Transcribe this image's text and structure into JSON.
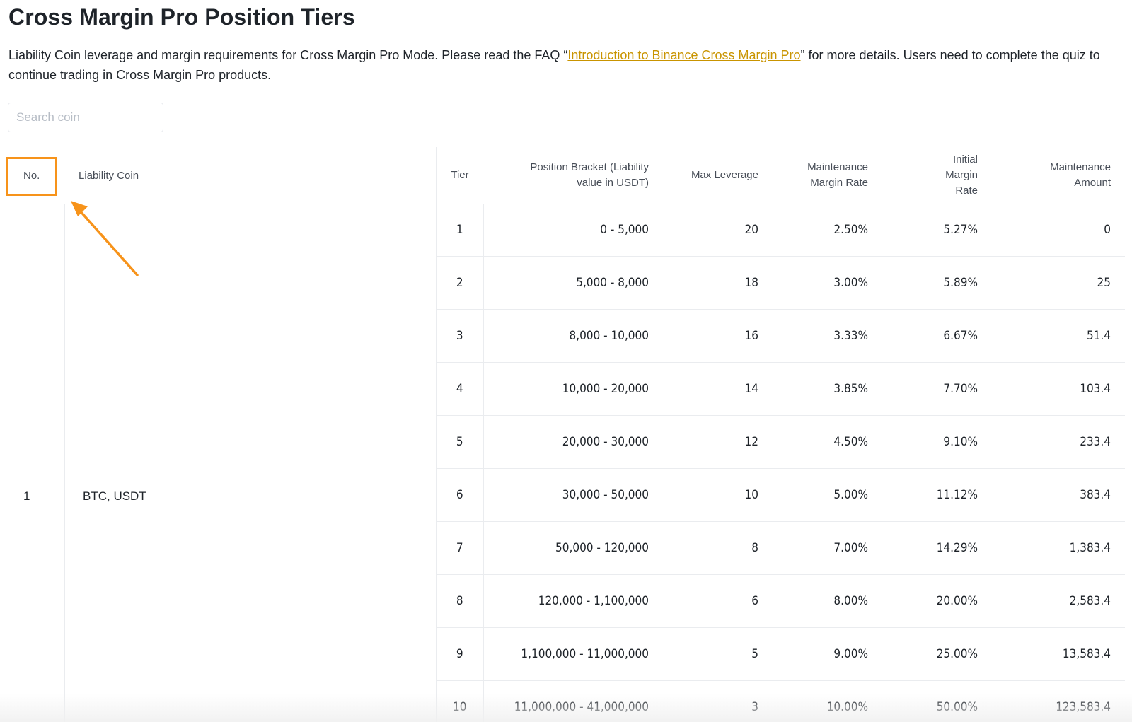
{
  "page": {
    "title": "Cross Margin Pro Position Tiers",
    "intro_before": "Liability Coin leverage and margin requirements for Cross Margin Pro Mode. Please read the FAQ “",
    "intro_link": "Introduction to Binance Cross Margin Pro",
    "intro_after": "” for more details. Users need to complete the quiz to continue trading in Cross Margin Pro products."
  },
  "search": {
    "placeholder": "Search coin",
    "value": ""
  },
  "left_table": {
    "headers": {
      "no": "No.",
      "coin": "Liability Coin"
    },
    "row": {
      "no": "1",
      "coin": "BTC, USDT"
    }
  },
  "tier_table": {
    "headers": {
      "tier": "Tier",
      "bracket": "Position Bracket (Liability value in USDT)",
      "max_leverage": "Max Leverage",
      "mmr": "Maintenance Margin Rate",
      "imr": "Initial Margin Rate",
      "amount": "Maintenance Amount"
    },
    "rows": [
      {
        "tier": "1",
        "bracket": "0 - 5,000",
        "max_leverage": "20",
        "mmr": "2.50%",
        "imr": "5.27%",
        "amount": "0"
      },
      {
        "tier": "2",
        "bracket": "5,000 - 8,000",
        "max_leverage": "18",
        "mmr": "3.00%",
        "imr": "5.89%",
        "amount": "25"
      },
      {
        "tier": "3",
        "bracket": "8,000 - 10,000",
        "max_leverage": "16",
        "mmr": "3.33%",
        "imr": "6.67%",
        "amount": "51.4"
      },
      {
        "tier": "4",
        "bracket": "10,000 - 20,000",
        "max_leverage": "14",
        "mmr": "3.85%",
        "imr": "7.70%",
        "amount": "103.4"
      },
      {
        "tier": "5",
        "bracket": "20,000 - 30,000",
        "max_leverage": "12",
        "mmr": "4.50%",
        "imr": "9.10%",
        "amount": "233.4"
      },
      {
        "tier": "6",
        "bracket": "30,000 - 50,000",
        "max_leverage": "10",
        "mmr": "5.00%",
        "imr": "11.12%",
        "amount": "383.4"
      },
      {
        "tier": "7",
        "bracket": "50,000 - 120,000",
        "max_leverage": "8",
        "mmr": "7.00%",
        "imr": "14.29%",
        "amount": "1,383.4"
      },
      {
        "tier": "8",
        "bracket": "120,000 - 1,100,000",
        "max_leverage": "6",
        "mmr": "8.00%",
        "imr": "20.00%",
        "amount": "2,583.4"
      },
      {
        "tier": "9",
        "bracket": "1,100,000 - 11,000,000",
        "max_leverage": "5",
        "mmr": "9.00%",
        "imr": "25.00%",
        "amount": "13,583.4"
      },
      {
        "tier": "10",
        "bracket": "11,000,000 - 41,000,000",
        "max_leverage": "3",
        "mmr": "10.00%",
        "imr": "50.00%",
        "amount": "123,583.4"
      }
    ]
  },
  "colors": {
    "text": "#1e2329",
    "muted": "#474d57",
    "link": "#c99400",
    "annotation": "#f7931a",
    "border": "#eaecef"
  }
}
